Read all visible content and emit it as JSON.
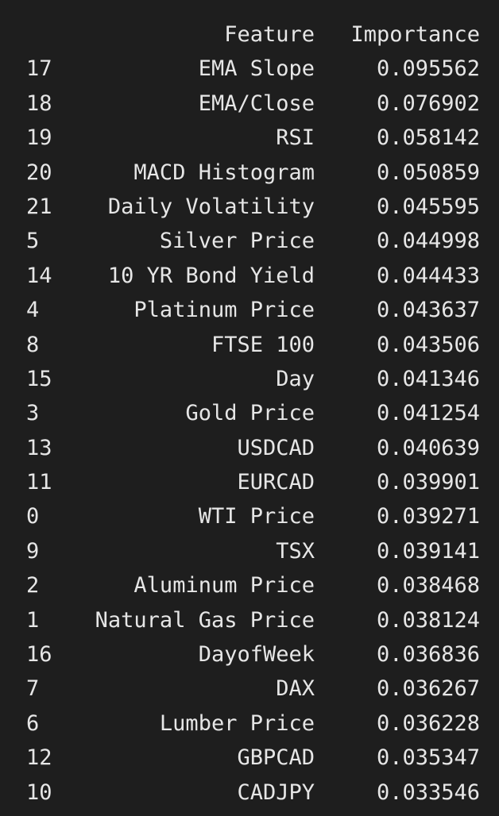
{
  "table": {
    "headers": {
      "index": "",
      "feature": "Feature",
      "importance": "Importance"
    },
    "rows": [
      {
        "index": "17",
        "feature": "EMA Slope",
        "importance": "0.095562"
      },
      {
        "index": "18",
        "feature": "EMA/Close",
        "importance": "0.076902"
      },
      {
        "index": "19",
        "feature": "RSI",
        "importance": "0.058142"
      },
      {
        "index": "20",
        "feature": "MACD Histogram",
        "importance": "0.050859"
      },
      {
        "index": "21",
        "feature": "Daily Volatility",
        "importance": "0.045595"
      },
      {
        "index": "5",
        "feature": "Silver Price",
        "importance": "0.044998"
      },
      {
        "index": "14",
        "feature": "10 YR Bond Yield",
        "importance": "0.044433"
      },
      {
        "index": "4",
        "feature": "Platinum Price",
        "importance": "0.043637"
      },
      {
        "index": "8",
        "feature": "FTSE 100",
        "importance": "0.043506"
      },
      {
        "index": "15",
        "feature": "Day",
        "importance": "0.041346"
      },
      {
        "index": "3",
        "feature": "Gold Price",
        "importance": "0.041254"
      },
      {
        "index": "13",
        "feature": "USDCAD",
        "importance": "0.040639"
      },
      {
        "index": "11",
        "feature": "EURCAD",
        "importance": "0.039901"
      },
      {
        "index": "0",
        "feature": "WTI Price",
        "importance": "0.039271"
      },
      {
        "index": "9",
        "feature": "TSX",
        "importance": "0.039141"
      },
      {
        "index": "2",
        "feature": "Aluminum Price",
        "importance": "0.038468"
      },
      {
        "index": "1",
        "feature": "Natural Gas Price",
        "importance": "0.038124"
      },
      {
        "index": "16",
        "feature": "DayofWeek",
        "importance": "0.036836"
      },
      {
        "index": "7",
        "feature": "DAX",
        "importance": "0.036267"
      },
      {
        "index": "6",
        "feature": "Lumber Price",
        "importance": "0.036228"
      },
      {
        "index": "12",
        "feature": "GBPCAD",
        "importance": "0.035347"
      },
      {
        "index": "10",
        "feature": "CADJPY",
        "importance": "0.033546"
      }
    ]
  },
  "colors": {
    "background": "#1e1e1e",
    "text": "#e6e6e6"
  }
}
